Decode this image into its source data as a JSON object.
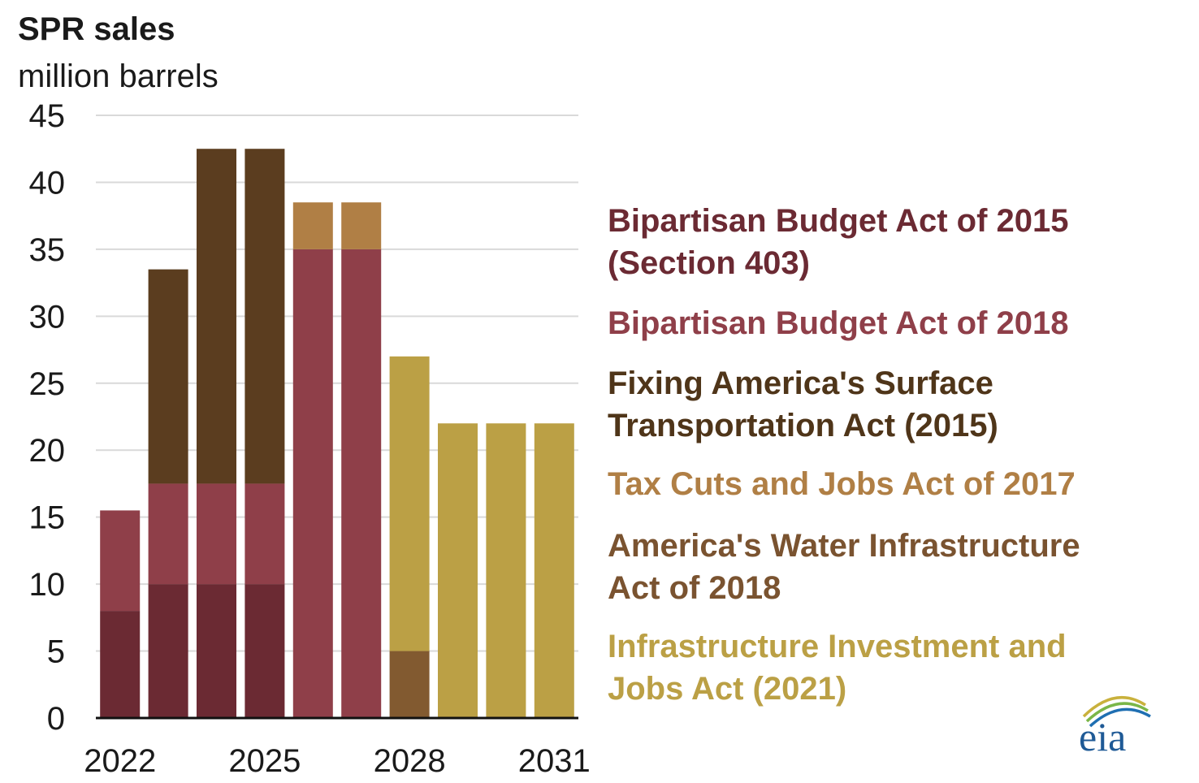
{
  "chart_data": {
    "type": "bar",
    "stacked": true,
    "title": "SPR sales",
    "ylabel": "million barrels",
    "xlabel": "",
    "ylim": [
      0,
      45
    ],
    "yticks": [
      0,
      5,
      10,
      15,
      20,
      25,
      30,
      35,
      40,
      45
    ],
    "categories": [
      "2022",
      "2023",
      "2024",
      "2025",
      "2026",
      "2027",
      "2028",
      "2029",
      "2030",
      "2031"
    ],
    "xtick_labels": [
      "2022",
      "2025",
      "2028",
      "2031"
    ],
    "grid": true,
    "series": [
      {
        "name": "Bipartisan Budget Act of 2015 (Section 403)",
        "legend_lines": [
          "Bipartisan Budget Act of 2015",
          "(Section 403)"
        ],
        "color": "#6b2a33",
        "values": [
          8,
          10,
          10,
          10,
          0,
          0,
          0,
          0,
          0,
          0
        ]
      },
      {
        "name": "Bipartisan Budget Act of 2018",
        "legend_lines": [
          "Bipartisan Budget Act of 2018"
        ],
        "color": "#8f3f49",
        "values": [
          7.5,
          7.5,
          7.5,
          7.5,
          35,
          35,
          0,
          0,
          0,
          0
        ]
      },
      {
        "name": "Fixing America's Surface Transportation Act (2015)",
        "legend_lines": [
          "Fixing America's Surface",
          "Transportation Act (2015)"
        ],
        "color": "#5b3d1f",
        "values": [
          0,
          16,
          25,
          25,
          0,
          0,
          0,
          0,
          0,
          0
        ]
      },
      {
        "name": "Tax Cuts and Jobs Act of 2017",
        "legend_lines": [
          "Tax Cuts and Jobs Act of 2017"
        ],
        "color": "#b07f45",
        "values": [
          0,
          0,
          0,
          0,
          3.5,
          3.5,
          0,
          0,
          0,
          0
        ]
      },
      {
        "name": "America's Water Infrastructure Act of 2018",
        "legend_lines": [
          "America's Water Infrastructure",
          "Act of 2018"
        ],
        "color": "#825a30",
        "values": [
          0,
          0,
          0,
          0,
          0,
          0,
          5,
          0,
          0,
          0
        ]
      },
      {
        "name": "Infrastructure Investment and Jobs Act (2021)",
        "legend_lines": [
          "Infrastructure Investment and",
          "Jobs Act (2021)"
        ],
        "color": "#bba045",
        "values": [
          0,
          0,
          0,
          0,
          0,
          0,
          22,
          22,
          22,
          22
        ]
      }
    ]
  },
  "branding": {
    "logo_text": "eia"
  }
}
